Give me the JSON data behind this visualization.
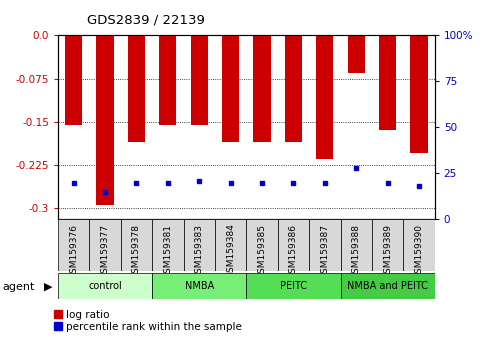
{
  "title": "GDS2839 / 22139",
  "samples": [
    "GSM159376",
    "GSM159377",
    "GSM159378",
    "GSM159381",
    "GSM159383",
    "GSM159384",
    "GSM159385",
    "GSM159386",
    "GSM159387",
    "GSM159388",
    "GSM159389",
    "GSM159390"
  ],
  "log_ratios": [
    -0.155,
    -0.295,
    -0.185,
    -0.155,
    -0.155,
    -0.185,
    -0.185,
    -0.185,
    -0.215,
    -0.065,
    -0.165,
    -0.205
  ],
  "percentile_ranks": [
    20,
    15,
    20,
    20,
    21,
    20,
    20,
    20,
    20,
    28,
    20,
    18
  ],
  "groups": [
    {
      "label": "control",
      "color": "#ccffcc",
      "indices": [
        0,
        1,
        2
      ]
    },
    {
      "label": "NMBA",
      "color": "#77ee77",
      "indices": [
        3,
        4,
        5
      ]
    },
    {
      "label": "PEITC",
      "color": "#55dd55",
      "indices": [
        6,
        7,
        8
      ]
    },
    {
      "label": "NMBA and PEITC",
      "color": "#44cc44",
      "indices": [
        9,
        10,
        11
      ]
    }
  ],
  "ylim_left": [
    -0.32,
    0.0
  ],
  "ylim_right": [
    0,
    100
  ],
  "yticks_left": [
    0.0,
    -0.075,
    -0.15,
    -0.225,
    -0.3
  ],
  "yticks_right": [
    0,
    25,
    50,
    75,
    100
  ],
  "bar_color": "#cc0000",
  "dot_color": "#0000cc",
  "left_tick_color": "#cc0000",
  "right_tick_color": "#0000cc",
  "legend_items": [
    "log ratio",
    "percentile rank within the sample"
  ],
  "legend_colors": [
    "#cc0000",
    "#0000cc"
  ],
  "bar_width": 0.55,
  "agent_label": "agent"
}
